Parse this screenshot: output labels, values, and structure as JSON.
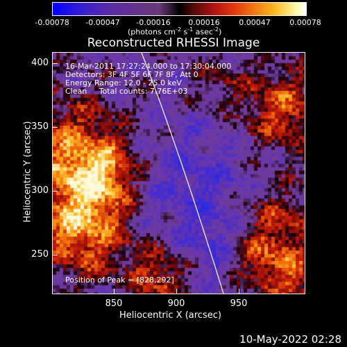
{
  "colorbar": {
    "ticks": [
      "-0.00078",
      "-0.00047",
      "-0.00016",
      "0.00016",
      "0.00047",
      "0.00078"
    ],
    "units_text": "(photons cm",
    "units_exp1": "-2",
    "units_s": " s",
    "units_exp2": "-1",
    "units_asec": " asec",
    "units_exp3": "-2",
    "units_close": ")"
  },
  "title": "Reconstructed RHESSI Image",
  "info": {
    "time_range": "16-Mar-2011 17:27:24.000 to 17:30:04.000",
    "detectors": "Detectors: 3F 4F 5F 6F 7F 8F, Att 0",
    "energy": "Energy Range: 12.0 - 25.0 keV",
    "method": "Clean     Total counts: 7.76E+03",
    "peak": "Position of Peak = [828,292]"
  },
  "axes": {
    "x_title": "Heliocentric X (arcsec)",
    "y_title": "Heliocentric Y (arcsec)",
    "x_ticks": [
      "850",
      "900",
      "950"
    ],
    "y_ticks": [
      "400",
      "350",
      "300",
      "250"
    ],
    "x_range": [
      801,
      992
    ],
    "y_range": [
      212,
      407
    ]
  },
  "footer_date": "10-May-2022 02:28"
}
